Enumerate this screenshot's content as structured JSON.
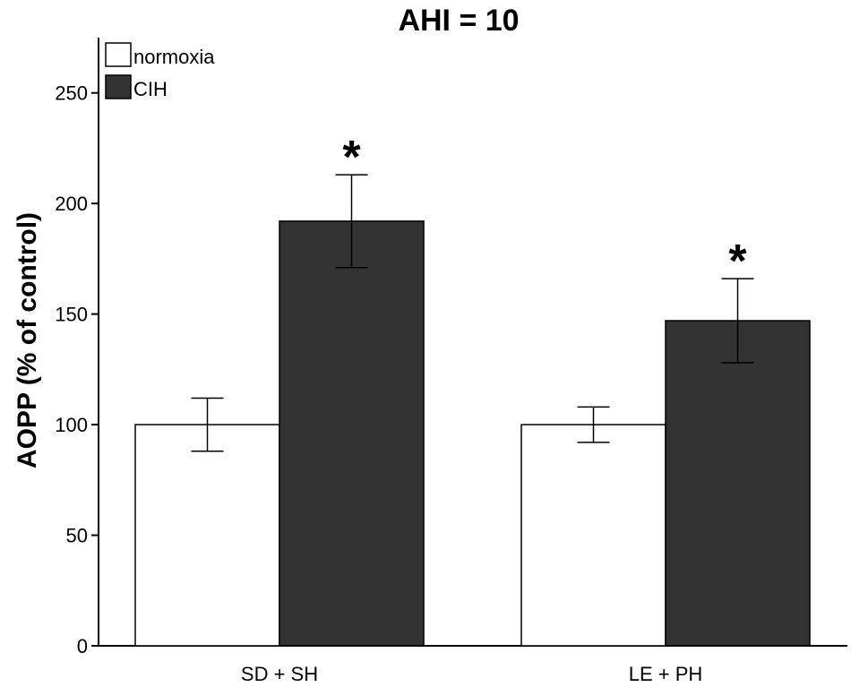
{
  "chart_data": {
    "type": "bar",
    "title": "AHI = 10",
    "xlabel": "",
    "ylabel": "AOPP (% of control)",
    "ylim": [
      0,
      275
    ],
    "yticks": [
      0,
      50,
      100,
      150,
      200,
      250
    ],
    "categories": [
      "SD + SH",
      "LE + PH"
    ],
    "series": [
      {
        "name": "normoxia",
        "color": "#ffffff",
        "values": [
          100,
          100
        ],
        "error_low": [
          88,
          92
        ],
        "error_high": [
          112,
          108
        ],
        "annotations": [
          "",
          ""
        ]
      },
      {
        "name": "CIH",
        "color": "#333333",
        "values": [
          192,
          147
        ],
        "error_low": [
          171,
          128
        ],
        "error_high": [
          213,
          166
        ],
        "annotations": [
          "*",
          "*"
        ]
      }
    ],
    "legend": "top-left"
  }
}
